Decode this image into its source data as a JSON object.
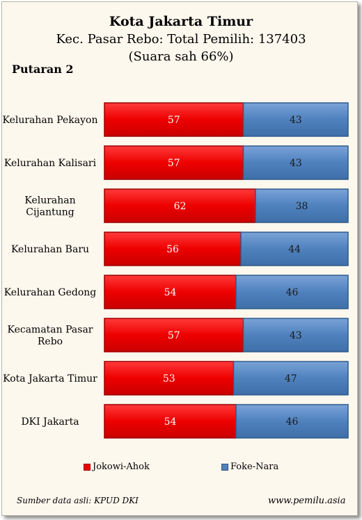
{
  "header": {
    "title": "Kota Jakarta Timur",
    "subtitle": "Kec. Pasar Rebo: Total Pemilih: 137403",
    "subtitle2": "(Suara sah 66%)",
    "round": "Putaran 2"
  },
  "footer": {
    "source": "Sumber data asli: KPUD DKI",
    "website": "www.pemilu.asia"
  },
  "colors": {
    "series1": "#ee0000",
    "series2": "#4f81bd"
  },
  "chart_data": {
    "type": "bar",
    "orientation": "horizontal",
    "stacked": true,
    "xlim": [
      0,
      100
    ],
    "grid": false,
    "legend_position": "bottom",
    "categories": [
      "Kelurahan Pekayon",
      "Kelurahan Kalisari",
      "Kelurahan Cijantung",
      "Kelurahan Baru",
      "Kelurahan Gedong",
      "Kecamatan Pasar Rebo",
      "Kota Jakarta Timur",
      "DKI Jakarta"
    ],
    "series": [
      {
        "name": "Jokowi-Ahok",
        "values": [
          57,
          57,
          62,
          56,
          54,
          57,
          53,
          54
        ]
      },
      {
        "name": "Foke-Nara",
        "values": [
          43,
          43,
          38,
          44,
          46,
          43,
          47,
          46
        ]
      }
    ]
  }
}
